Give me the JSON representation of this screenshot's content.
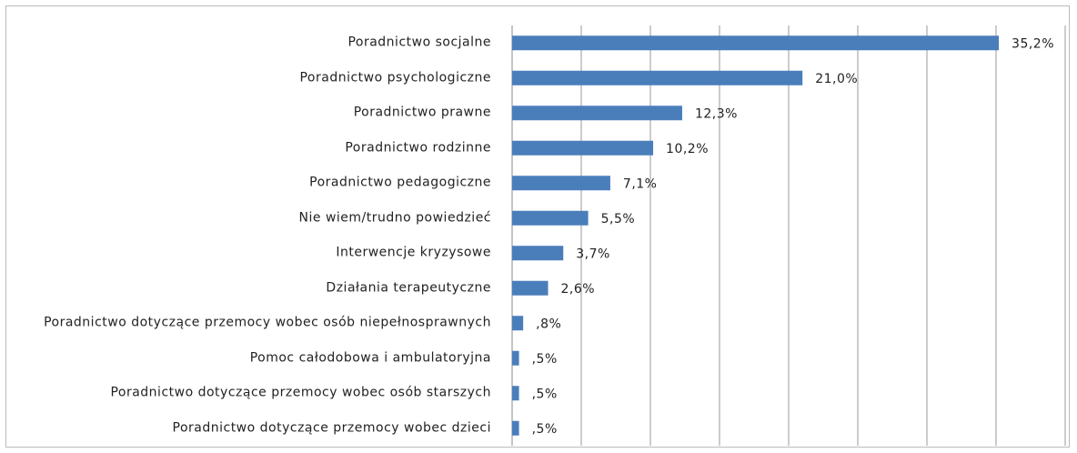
{
  "chart_data": {
    "type": "bar",
    "orientation": "horizontal",
    "categories": [
      "Poradnictwo socjalne",
      "Poradnictwo psychologiczne",
      "Poradnictwo prawne",
      "Poradnictwo rodzinne",
      "Poradnictwo pedagogiczne",
      "Nie wiem/trudno powiedzieć",
      "Interwencje kryzysowe",
      "Działania terapeutyczne",
      "Poradnictwo dotyczące przemocy wobec osób niepełnosprawnych",
      "Pomoc całodobowa i ambulatoryjna",
      "Poradnictwo dotyczące przemocy wobec osób starszych",
      "Poradnictwo dotyczące przemocy wobec dzieci"
    ],
    "values": [
      35.2,
      21.0,
      12.3,
      10.2,
      7.1,
      5.5,
      3.7,
      2.6,
      0.8,
      0.5,
      0.5,
      0.5
    ],
    "value_labels": [
      "35,2%",
      "21,0%",
      "12,3%",
      "10,2%",
      "7,1%",
      "5,5%",
      "3,7%",
      "2,6%",
      ",8%",
      ",5%",
      ",5%",
      ",5%"
    ],
    "color": "#4a7ebb",
    "xlim": [
      0,
      40
    ],
    "xticks": [
      0,
      5,
      10,
      15,
      20,
      25,
      30,
      35,
      40
    ],
    "grid": true
  }
}
